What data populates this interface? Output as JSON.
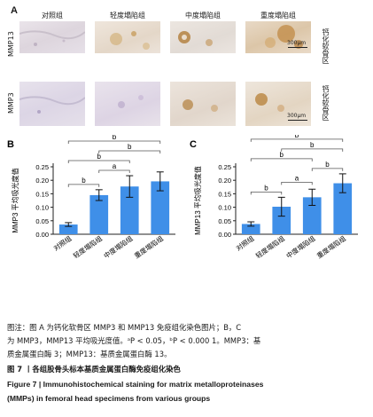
{
  "micro": {
    "letter": "A",
    "columns": [
      "对照组",
      "轻度塌陷组",
      "中度塌陷组",
      "重度塌陷组"
    ],
    "rows": [
      {
        "label": "MMP13",
        "side": "钙化软骨区",
        "scale": "300μm"
      },
      {
        "label": "MMP3",
        "side": "钙化软骨区",
        "scale": "300μm"
      }
    ]
  },
  "chart_data": [
    {
      "panel": "B",
      "type": "bar",
      "categories": [
        "对照组",
        "轻度塌陷组",
        "中度塌陷组",
        "重度塌陷组"
      ],
      "values": [
        0.036,
        0.145,
        0.177,
        0.196
      ],
      "errors": [
        0.007,
        0.02,
        0.04,
        0.035
      ],
      "ylabel": "MMP3 平均吸光度值",
      "ylim": [
        0,
        0.25
      ],
      "yticks": [
        "0.00",
        "0.05",
        "0.10",
        "0.15",
        "0.20",
        "0.25"
      ],
      "bar_color": "#3f8fe8",
      "sig": [
        {
          "from": 0,
          "to": 1,
          "label": "b"
        },
        {
          "from": 1,
          "to": 2,
          "label": "a"
        },
        {
          "from": 0,
          "to": 2,
          "label": "b"
        },
        {
          "from": 1,
          "to": 3,
          "label": "b"
        },
        {
          "from": 0,
          "to": 3,
          "label": "b"
        }
      ]
    },
    {
      "panel": "C",
      "type": "bar",
      "categories": [
        "对照组",
        "轻度塌陷组",
        "中度塌陷组",
        "重度塌陷组"
      ],
      "values": [
        0.038,
        0.102,
        0.137,
        0.189
      ],
      "errors": [
        0.008,
        0.035,
        0.03,
        0.035
      ],
      "ylabel": "MMP13 平均吸光度值",
      "ylim": [
        0,
        0.25
      ],
      "yticks": [
        "0.00",
        "0.05",
        "0.10",
        "0.15",
        "0.20",
        "0.25"
      ],
      "bar_color": "#3f8fe8",
      "sig": [
        {
          "from": 0,
          "to": 1,
          "label": "b"
        },
        {
          "from": 1,
          "to": 2,
          "label": "a"
        },
        {
          "from": 2,
          "to": 3,
          "label": "b"
        },
        {
          "from": 0,
          "to": 2,
          "label": "b"
        },
        {
          "from": 1,
          "to": 3,
          "label": "b"
        },
        {
          "from": 0,
          "to": 3,
          "label": "b"
        }
      ]
    }
  ],
  "caption": {
    "note_line1": "图注：图 A 为钙化软骨区 MMP3 和 MMP13 免疫组化染色图片；B，C",
    "note_line2": "为 MMP3，MMP13 平均吸光度值。ᵃP < 0.05，ᵇP < 0.000 1。MMP3：基",
    "note_line3": "质金属蛋白酶 3；MMP13：基质金属蛋白酶 13。",
    "figure_cn": "图 7 丨各组股骨头标本基质金属蛋白酶免疫组化染色",
    "figure_en1": "Figure 7  |  Immunohistochemical staining for matrix metalloproteinases",
    "figure_en2": "(MMPs) in femoral head specimens from various groups"
  }
}
